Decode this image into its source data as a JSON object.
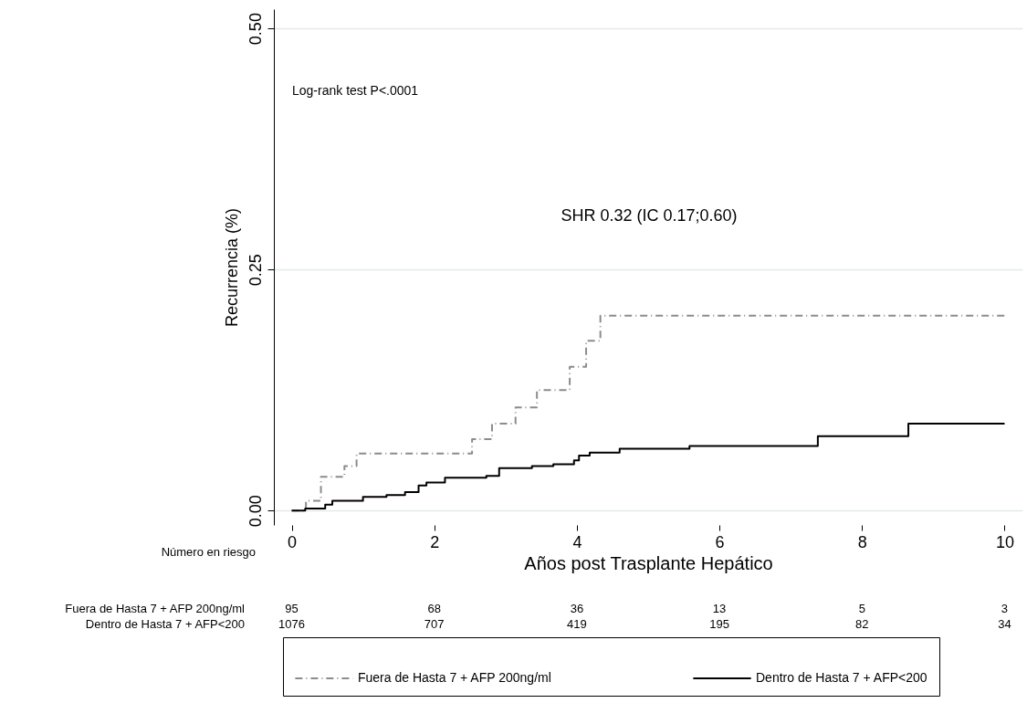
{
  "chart_data": {
    "type": "step",
    "xlabel": "Años post Trasplante Hepático",
    "ylabel": "Recurrencia (%)",
    "xlim": [
      -0.25,
      10.25
    ],
    "xticks": [
      0,
      2,
      4,
      6,
      8,
      10
    ],
    "ylim": [
      -0.015,
      0.52
    ],
    "yticks": [
      {
        "value": 0,
        "label": "0.00"
      },
      0.25,
      {
        "value": 0.5,
        "label": "0.50"
      }
    ],
    "grid": "y",
    "legend": "bottom",
    "series": [
      {
        "name": "Fuera de Hasta 7 + AFP 200ng/ml",
        "color": "#8c8c8c",
        "line_style": "dashed",
        "x": [
          0,
          0.2,
          0.41,
          0.74,
          0.91,
          2.53,
          2.81,
          3.14,
          3.44,
          3.9,
          4.13,
          4.33,
          10
        ],
        "values": [
          0,
          0.01,
          0.035,
          0.046,
          0.059,
          0.074,
          0.09,
          0.107,
          0.125,
          0.149,
          0.176,
          0.202,
          0.202
        ]
      },
      {
        "name": "Dentro de Hasta 7 + AFP<200",
        "color": "#000000",
        "line_style": "solid",
        "x": [
          0,
          0.19,
          0.47,
          0.57,
          1.0,
          1.33,
          1.59,
          1.78,
          1.89,
          2.15,
          2.73,
          2.91,
          3.37,
          3.67,
          3.96,
          4.03,
          4.18,
          4.6,
          5.58,
          7.38,
          8.65,
          10
        ],
        "values": [
          0,
          0.002,
          0.006,
          0.01,
          0.014,
          0.016,
          0.019,
          0.026,
          0.029,
          0.034,
          0.036,
          0.044,
          0.046,
          0.048,
          0.052,
          0.057,
          0.06,
          0.064,
          0.067,
          0.077,
          0.09,
          0.09
        ]
      }
    ],
    "annotations": [
      "Log-rank test P<.0001",
      "SHR 0.32 (IC 0.17;0.60)",
      "Número en riesgo",
      "Fuera de Hasta 7 + AFP 200ng/ml",
      "95",
      "68",
      "36",
      "13",
      "5",
      "3",
      "Dentro de Hasta 7 + AFP<200",
      "1076",
      "707",
      "419",
      "195",
      "82",
      "34"
    ]
  }
}
